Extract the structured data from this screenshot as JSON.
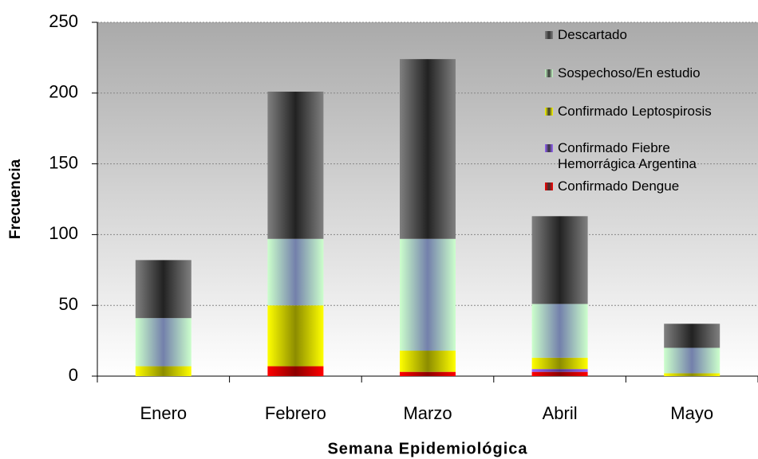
{
  "chart_data": {
    "type": "stacked_bar",
    "x_label": "Semana Epidemiológica",
    "y_label": "Frecuencia",
    "categories": [
      "Enero",
      "Febrero",
      "Marzo",
      "Abril",
      "Mayo"
    ],
    "series": [
      {
        "name": "Confirmado Dengue",
        "color": "#ff0000",
        "values": [
          0,
          7,
          3,
          3,
          0
        ]
      },
      {
        "name": "Confirmado Fiebre Hemorrágica Argentina",
        "color": "#9966ff",
        "values": [
          0,
          0,
          0,
          2,
          0
        ]
      },
      {
        "name": "Confirmado Leptospirosis",
        "color": "#ffff00",
        "values": [
          7,
          43,
          15,
          8,
          2
        ]
      },
      {
        "name": "Sospechoso/En estudio",
        "color": "#ccffcc",
        "values": [
          34,
          47,
          79,
          38,
          18
        ]
      },
      {
        "name": "Descartado",
        "color": "#808080",
        "values": [
          41,
          104,
          127,
          62,
          17
        ]
      }
    ],
    "ylim": [
      0,
      250
    ],
    "yticks": [
      0,
      50,
      100,
      150,
      200,
      250
    ],
    "grid": true
  }
}
